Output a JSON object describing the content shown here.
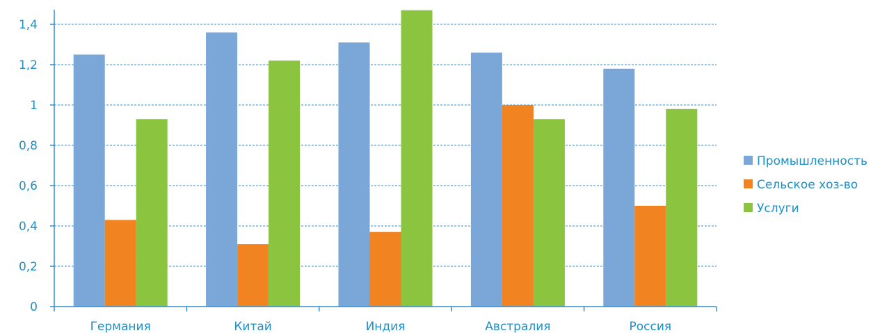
{
  "chart_data": {
    "type": "bar",
    "categories": [
      "Германия",
      "Китай",
      "Индия",
      "Австралия",
      "Россия"
    ],
    "series": [
      {
        "name": "Промышленность",
        "values": [
          1.25,
          1.36,
          1.31,
          1.26,
          1.18
        ]
      },
      {
        "name": "Сельское хоз-во",
        "values": [
          0.43,
          0.31,
          0.37,
          1.0,
          0.5
        ]
      },
      {
        "name": "Услуги",
        "values": [
          0.93,
          1.22,
          1.47,
          0.93,
          0.98
        ]
      }
    ],
    "y_ticks": [
      "0",
      "0,2",
      "0,4",
      "0,6",
      "0,8",
      "1",
      "1,2",
      "1,4"
    ],
    "ylim": [
      0,
      1.47
    ],
    "grid": true,
    "legend_position": "right",
    "colors": {
      "Промышленность": "#7aa6d8",
      "Сельское хоз-во": "#f28321",
      "Услуги": "#8bc53f",
      "axis": "#2e8fd1",
      "text": "#1f8fc4"
    }
  }
}
